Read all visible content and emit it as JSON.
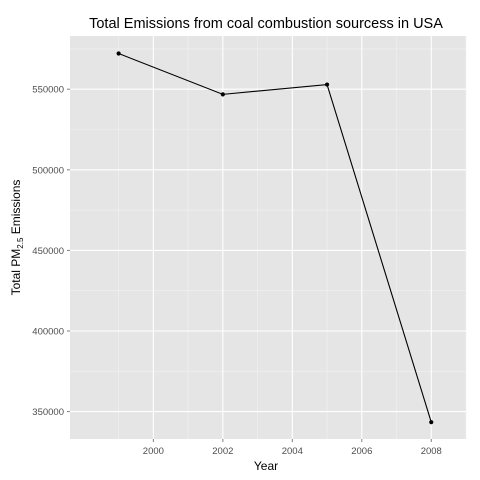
{
  "chart_data": {
    "type": "line",
    "title": "Total Emissions from coal combustion sourcess in USA",
    "xlabel": "Year",
    "ylabel": {
      "prefix": "Total PM",
      "subscript": "2.5",
      "suffix": " Emissions"
    },
    "x": [
      1999,
      2002,
      2005,
      2008
    ],
    "series": [
      {
        "values": [
          572126,
          546789,
          552881,
          343432
        ]
      }
    ],
    "xlim": [
      1997.6,
      2009.0
    ],
    "ylim": [
      333000,
      583000
    ],
    "xticks": [
      2000,
      2002,
      2004,
      2006,
      2008
    ],
    "xtick_labels": [
      "2000",
      "2002",
      "2004",
      "2006",
      "2008"
    ],
    "yticks": [
      350000,
      400000,
      450000,
      500000,
      550000
    ],
    "ytick_labels": [
      "350000",
      "400000",
      "450000",
      "500000",
      "550000"
    ],
    "grid": true,
    "legend": "none",
    "colors": {
      "panel": "#e5e5e5",
      "grid_major": "#ffffff",
      "grid_minor": "#f2f2f2",
      "line": "#000000",
      "point": "#000000",
      "tick_text": "#4d4d4d"
    }
  }
}
